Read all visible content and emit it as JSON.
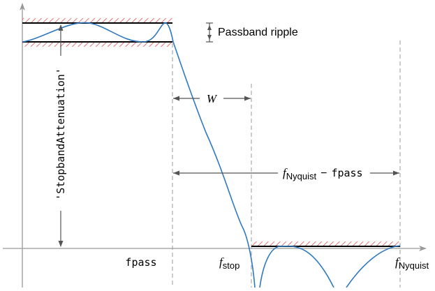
{
  "colors": {
    "axis": "#999999",
    "dashed": "#999999",
    "limit": "#000000",
    "hatch": "#e57373",
    "response": "#2f79c0",
    "text": "#000000"
  },
  "labels": {
    "passband_ripple": "Passband ripple",
    "stopband_attenuation": "'StopbandAttenuation'",
    "transition_width": "W",
    "fpass_tick": "fpass",
    "fstop_tick_main": "f",
    "fstop_tick_sub": "stop",
    "fnyquist_tick_main": "f",
    "fnyquist_tick_sub": "Nyquist",
    "span_f": "f",
    "span_sub": "Nyquist",
    "span_minus": "−",
    "span_fpass": "fpass"
  },
  "icons": {
    "ripple_arrow": "double-arrow-icon",
    "attenuation_arrow": "double-arrow-icon",
    "width_arrow": "double-arrow-icon",
    "span_arrow": "double-arrow-icon"
  }
}
